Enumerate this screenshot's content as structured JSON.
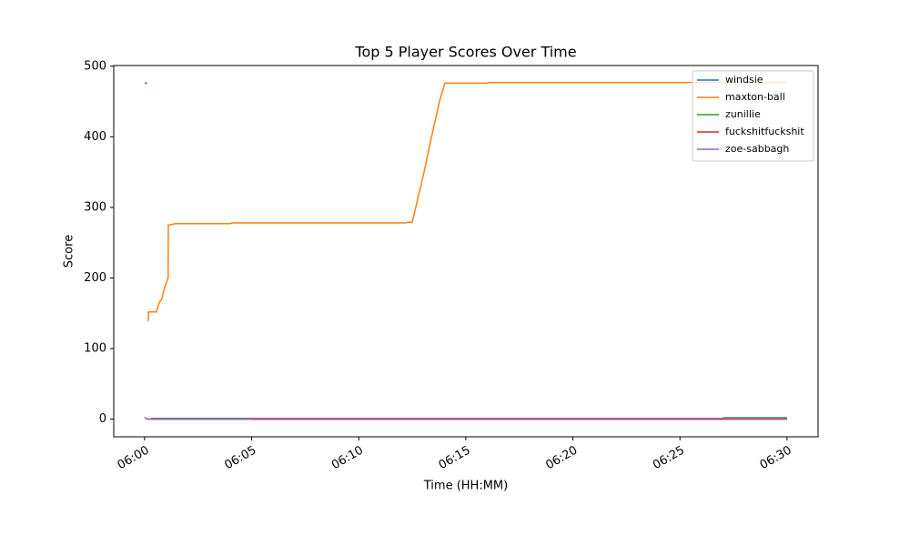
{
  "chart_data": {
    "type": "line",
    "title": "Top 5 Player Scores Over Time",
    "x_label": "Time (HH:MM)",
    "y_label": "Score",
    "xlim": [
      -1.44,
      31.45
    ],
    "ylim": [
      -25,
      501
    ],
    "xticks": [
      {
        "value": 0,
        "label": "06:00"
      },
      {
        "value": 5,
        "label": "06:05"
      },
      {
        "value": 10,
        "label": "06:10"
      },
      {
        "value": 15,
        "label": "06:15"
      },
      {
        "value": 20,
        "label": "06:20"
      },
      {
        "value": 25,
        "label": "06:25"
      },
      {
        "value": 30,
        "label": "06:30"
      }
    ],
    "yticks": [
      0,
      100,
      200,
      300,
      400,
      500
    ],
    "grid": false,
    "legend": "upper right",
    "series": [
      {
        "name": "windsie",
        "color": "#1f77b4",
        "x": [
          0,
          0.12,
          0.13,
          0.3,
          30
        ],
        "values": [
          476,
          476,
          null,
          1,
          1
        ]
      },
      {
        "name": "maxton-ball",
        "color": "#ff7f0e",
        "x": [
          0.17,
          0.18,
          0.55,
          0.68,
          0.8,
          0.9,
          1.0,
          1.1,
          1.11,
          1.3,
          1.45,
          4.0,
          4.08,
          12.2,
          12.3,
          12.5,
          12.66,
          13.05,
          13.4,
          13.77,
          14.02,
          16.0,
          16.05,
          30.0
        ],
        "values": [
          139,
          152,
          152,
          165,
          170,
          183,
          192,
          200,
          275,
          276,
          277,
          277,
          278,
          278,
          279,
          279,
          300,
          350,
          400,
          450,
          476,
          476,
          477,
          477
        ]
      },
      {
        "name": "zunillie",
        "color": "#2ca02c",
        "x": [
          0.1,
          27,
          27.05,
          30
        ],
        "values": [
          0,
          0,
          2,
          2
        ]
      },
      {
        "name": "fuckshitfuckshit",
        "color": "#d62728",
        "x": [
          0.1,
          30
        ],
        "values": [
          0,
          0
        ]
      },
      {
        "name": "zoe-sabbagh",
        "color": "#9467bd",
        "x": [
          0,
          0.1,
          5,
          5.05,
          30
        ],
        "values": [
          3,
          0,
          0,
          1,
          1
        ]
      }
    ]
  }
}
